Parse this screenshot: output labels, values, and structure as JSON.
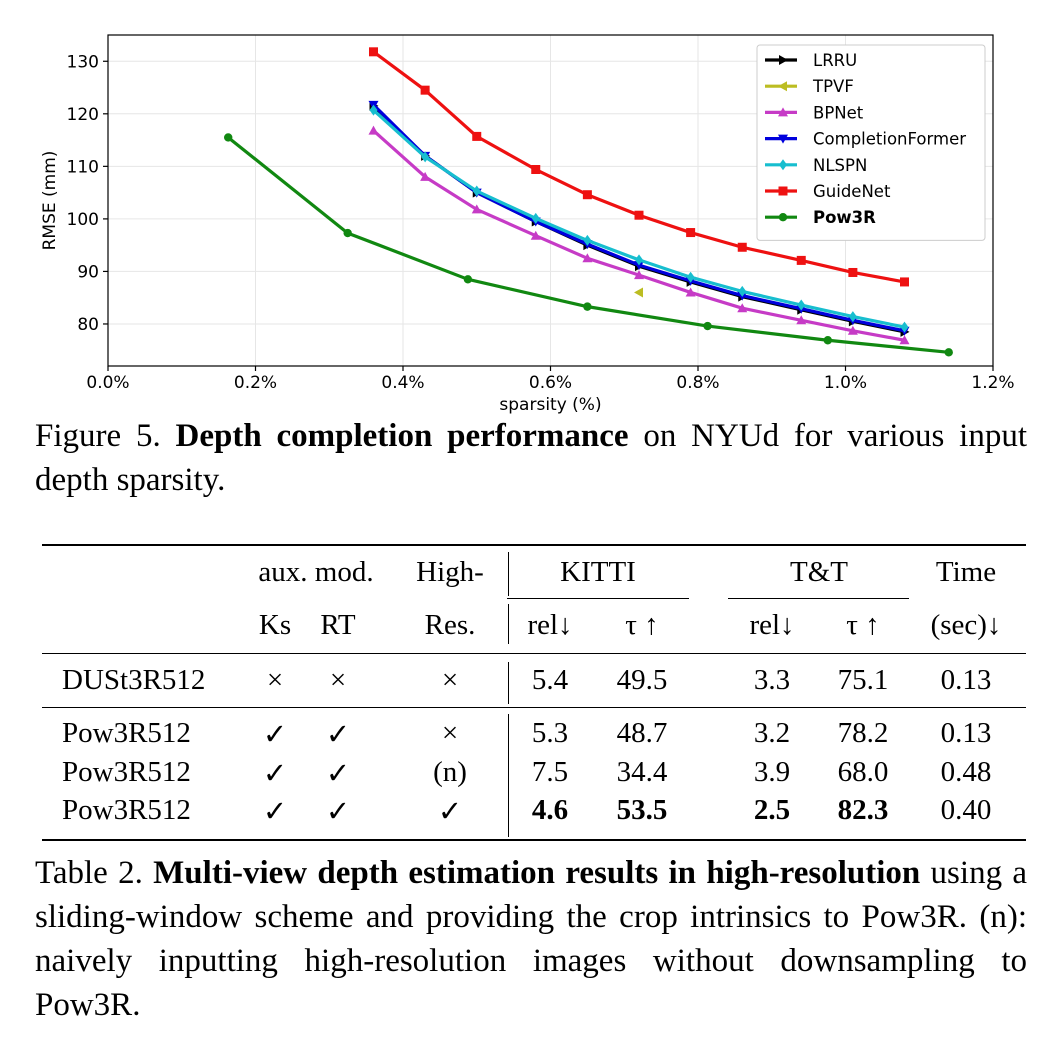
{
  "chart_data": {
    "type": "line",
    "xlabel": "sparsity (%)",
    "ylabel": "RMSE (mm)",
    "xlim": [
      0.0,
      1.2
    ],
    "ylim": [
      72,
      135
    ],
    "x_ticks": [
      "0.0%",
      "0.2%",
      "0.4%",
      "0.6%",
      "0.8%",
      "1.0%",
      "1.2%"
    ],
    "y_ticks": [
      "80",
      "90",
      "100",
      "110",
      "120",
      "130"
    ],
    "grid": true,
    "legend_position": "top-right",
    "series": [
      {
        "name": "LRRU",
        "color": "#000000",
        "marker": "right-triangle",
        "x": [
          0.36,
          0.43,
          0.5,
          0.58,
          0.65,
          0.72,
          0.79,
          0.86,
          0.94,
          1.01,
          1.08
        ],
        "y": [
          121.5,
          112,
          105,
          99.5,
          95,
          91,
          88,
          85.2,
          82.7,
          80.5,
          78.5
        ]
      },
      {
        "name": "TPVF",
        "color": "#bcbd22",
        "marker": "left-triangle",
        "x": [
          0.72
        ],
        "y": [
          86
        ]
      },
      {
        "name": "BPNet",
        "color": "#c63bc6",
        "marker": "triangle-up",
        "x": [
          0.36,
          0.43,
          0.5,
          0.58,
          0.65,
          0.72,
          0.79,
          0.86,
          0.94,
          1.01,
          1.08
        ],
        "y": [
          116.8,
          108,
          101.8,
          96.8,
          92.5,
          89.3,
          86,
          83,
          80.7,
          78.7,
          76.9
        ]
      },
      {
        "name": "CompletionFormer",
        "color": "#0000dd",
        "marker": "triangle-down",
        "x": [
          0.36,
          0.43,
          0.5,
          0.58,
          0.65,
          0.72,
          0.79,
          0.86,
          0.94,
          1.01,
          1.08
        ],
        "y": [
          121.7,
          112,
          105,
          99.5,
          95.2,
          91.2,
          88.2,
          85.4,
          82.9,
          80.7,
          78.7
        ]
      },
      {
        "name": "NLSPN",
        "color": "#17becf",
        "marker": "diamond",
        "x": [
          0.36,
          0.43,
          0.5,
          0.58,
          0.65,
          0.72,
          0.79,
          0.86,
          0.94,
          1.01,
          1.08
        ],
        "y": [
          120.7,
          111.8,
          105.3,
          100.1,
          95.9,
          92.2,
          88.9,
          86.2,
          83.6,
          81.4,
          79.4
        ]
      },
      {
        "name": "GuideNet",
        "color": "#ee1111",
        "marker": "square",
        "x": [
          0.36,
          0.43,
          0.5,
          0.58,
          0.65,
          0.72,
          0.79,
          0.86,
          0.94,
          1.01,
          1.08
        ],
        "y": [
          131.8,
          124.5,
          115.7,
          109.4,
          104.6,
          100.7,
          97.4,
          94.6,
          92.1,
          89.8,
          88
        ]
      },
      {
        "name": "Pow3R",
        "color": "#118811",
        "marker": "circle",
        "bold": true,
        "x": [
          0.163,
          0.325,
          0.488,
          0.65,
          0.813,
          0.976,
          1.14
        ],
        "y": [
          115.5,
          97.3,
          88.5,
          83.3,
          79.6,
          76.9,
          74.6
        ]
      }
    ]
  },
  "figure_caption": {
    "label": "Figure 5.",
    "bold": "Depth completion performance",
    "rest": " on NYUd for various input depth sparsity."
  },
  "table": {
    "header1": {
      "aux_mod": "aux. mod.",
      "high": "High-",
      "kitti": "KITTI",
      "tt": "T&T",
      "time": "Time"
    },
    "header2": {
      "ks": "Ks",
      "rt": "RT",
      "res": "Res.",
      "kitti_rel": "rel↓",
      "kitti_tau": "τ ↑",
      "tt_rel": "rel↓",
      "tt_tau": "τ ↑",
      "time": "(sec)↓"
    },
    "rows": [
      {
        "method": "DUSt3R512",
        "ks": "×",
        "rt": "×",
        "high": "×",
        "kitti_rel": "5.4",
        "kitti_tau": "49.5",
        "tt_rel": "3.3",
        "tt_tau": "75.1",
        "time": "0.13"
      },
      {
        "method": "Pow3R512",
        "ks": "✓",
        "rt": "✓",
        "high": "×",
        "kitti_rel": "5.3",
        "kitti_tau": "48.7",
        "tt_rel": "3.2",
        "tt_tau": "78.2",
        "time": "0.13"
      },
      {
        "method": "Pow3R512",
        "ks": "✓",
        "rt": "✓",
        "high": "(n)",
        "kitti_rel": "7.5",
        "kitti_tau": "34.4",
        "tt_rel": "3.9",
        "tt_tau": "68.0",
        "time": "0.48"
      },
      {
        "method": "Pow3R512",
        "ks": "✓",
        "rt": "✓",
        "high": "✓",
        "kitti_rel": "4.6",
        "kitti_tau": "53.5",
        "tt_rel": "2.5",
        "tt_tau": "82.3",
        "time": "0.40",
        "bold_cols": [
          "kitti_rel",
          "kitti_tau",
          "tt_rel",
          "tt_tau"
        ]
      }
    ]
  },
  "table_caption": {
    "label": "Table 2.",
    "bold": "Multi-view depth estimation results in high-resolution",
    "rest": " using a sliding-window scheme and providing the crop intrinsics to Pow3R. (n): naively inputting high-resolution images without downsampling to Pow3R."
  }
}
